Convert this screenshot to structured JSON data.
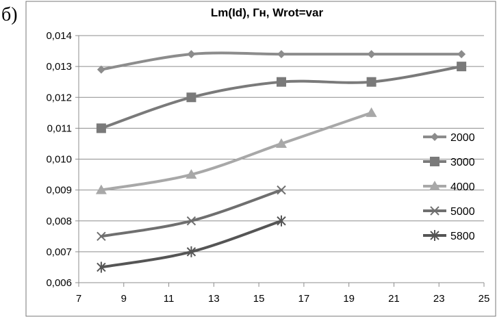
{
  "figure_label": "б)",
  "chart_data": {
    "type": "line",
    "title": "Lm(Id), Гн,  Wrot=var",
    "xlabel": "",
    "ylabel": "",
    "xlim": [
      7,
      25
    ],
    "ylim": [
      0.006,
      0.014
    ],
    "x_ticks": [
      "7",
      "9",
      "11",
      "13",
      "15",
      "17",
      "19",
      "21",
      "23",
      "25"
    ],
    "y_ticks": [
      "0,006",
      "0,007",
      "0,008",
      "0,009",
      "0,010",
      "0,011",
      "0,012",
      "0,013",
      "0,014"
    ],
    "grid": "horizontal",
    "legend_position": "right",
    "series": [
      {
        "name": "2000",
        "marker": "diamond",
        "color": "#8c8c8c",
        "x": [
          8,
          12,
          16,
          20,
          24
        ],
        "y": [
          0.0129,
          0.0134,
          0.0134,
          0.0134,
          0.0134
        ]
      },
      {
        "name": "3000",
        "marker": "square",
        "color": "#7a7a7a",
        "x": [
          8,
          12,
          16,
          20,
          24
        ],
        "y": [
          0.011,
          0.012,
          0.0125,
          0.0125,
          0.013
        ]
      },
      {
        "name": "4000",
        "marker": "triangle",
        "color": "#a8a8a8",
        "x": [
          8,
          12,
          16,
          20
        ],
        "y": [
          0.009,
          0.0095,
          0.0105,
          0.0115
        ]
      },
      {
        "name": "5000",
        "marker": "x",
        "color": "#6f6f6f",
        "x": [
          8,
          12,
          16
        ],
        "y": [
          0.0075,
          0.008,
          0.009
        ]
      },
      {
        "name": "5800",
        "marker": "star",
        "color": "#555555",
        "x": [
          8,
          12,
          16
        ],
        "y": [
          0.0065,
          0.007,
          0.008
        ]
      }
    ]
  }
}
